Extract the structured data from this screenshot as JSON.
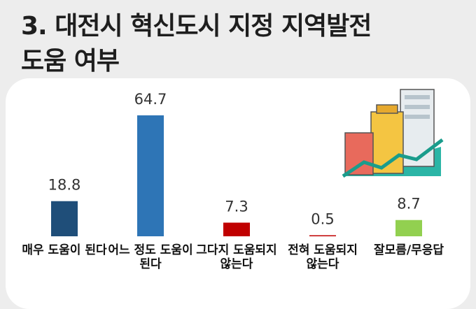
{
  "chart_data": {
    "type": "bar",
    "title": [
      "3. 대전시 혁신도시 지정 지역발전",
      "도움 여부"
    ],
    "categories": [
      "매우 도움이 된다",
      "어느 정도 도움이 된다",
      "그다지 도움되지 않는다",
      "전혀 도움되지 않는다",
      "잘모름/무응답"
    ],
    "values": [
      18.8,
      64.7,
      7.3,
      0.5,
      8.7
    ],
    "colors": [
      "#1f4e79",
      "#2e75b6",
      "#c00000",
      "#c00000",
      "#92d050"
    ]
  }
}
